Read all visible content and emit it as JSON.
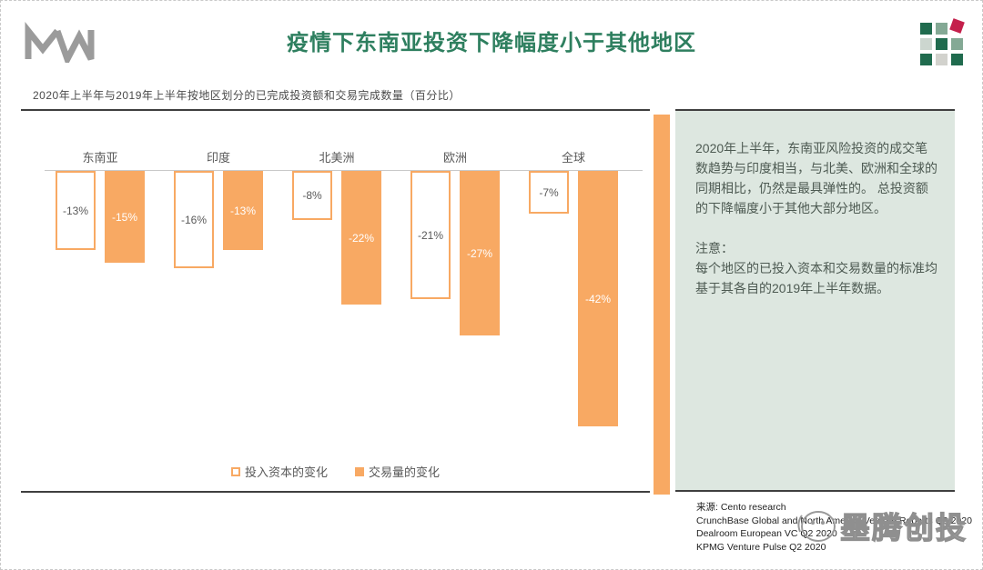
{
  "header": {
    "logo_name": "MW-logo",
    "title": "疫情下东南亚投资下降幅度小于其他地区",
    "title_color": "#2e7f5f",
    "subtitle": "2020年上半年与2019年上半年按地区划分的已完成投资额和交易完成数量（百分比）"
  },
  "grid_icon": {
    "cells": [
      [
        "dark",
        "mid",
        "red"
      ],
      [
        "pale",
        "dark",
        "mid"
      ],
      [
        "dark",
        "light",
        "dark"
      ]
    ],
    "palette": {
      "dark": "#206b4e",
      "mid": "#84a995",
      "pale": "#ccd6cf",
      "light": "#d2d2cd",
      "red": "#c41f4b"
    }
  },
  "chart_data": {
    "type": "bar",
    "categories": [
      "东南亚",
      "印度",
      "北美洲",
      "欧洲",
      "全球"
    ],
    "series": [
      {
        "name": "投入资本的变化",
        "style": "outline",
        "values": [
          -13,
          -16,
          -8,
          -21,
          -7
        ]
      },
      {
        "name": "交易量的变化",
        "style": "fill",
        "values": [
          -15,
          -13,
          -22,
          -27,
          -42
        ]
      }
    ],
    "value_suffix": "%",
    "ylim": [
      -45,
      0
    ],
    "grid": false,
    "legend_position": "bottom",
    "bar_color": "#f8a963",
    "outline_label_color": "#595959",
    "fill_label_color": "#ffffff"
  },
  "panel": {
    "background": "#dde7e0",
    "stripe_color": "#f8a963",
    "paragraph1": "2020年上半年，东南亚风险投资的成交笔数趋势与印度相当，与北美、欧洲和全球的同期相比，仍然是最具弹性的。 总投资额的下降幅度小于其他大部分地区。",
    "note_label": "注意：",
    "note_text": "每个地区的已投入资本和交易数量的标准均基于其各自的2019年上半年数据。"
  },
  "sources": {
    "line1": "来源: Cento research",
    "line2": "CrunchBase Global and North America Venture Reports Q2 2020",
    "line3": "Dealroom European VC Q2 2020",
    "line4": "KPMG Venture Pulse Q2 2020"
  },
  "watermark": {
    "text": "墨腾创投"
  }
}
